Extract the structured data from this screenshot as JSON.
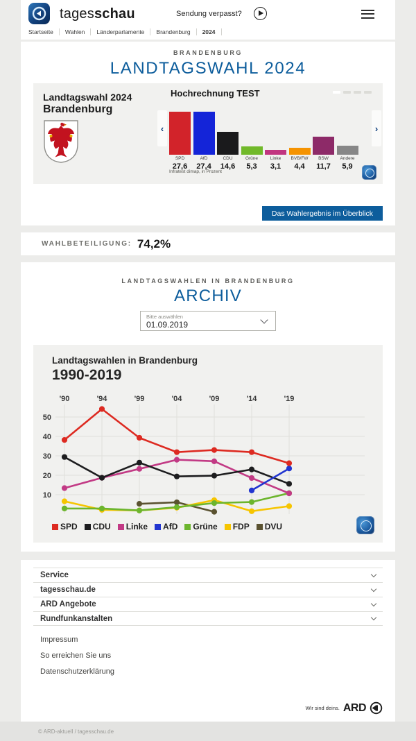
{
  "header": {
    "brand_regular": "tages",
    "brand_bold": "schau",
    "sendung_label": "Sendung verpasst?",
    "breadcrumb": [
      "Startseite",
      "Wahlen",
      "Länderparlamente",
      "Brandenburg",
      "2024"
    ]
  },
  "hero": {
    "kicker": "BRANDENBURG",
    "title": "LANDTAGSWAHL 2024"
  },
  "widget": {
    "card_title_line1": "Landtagswahl 2024",
    "card_title_line2": "Brandenburg",
    "panel_title": "Hochrechnung TEST",
    "source": "Infratest dimap, in Prozent",
    "pagination_count": 4,
    "pagination_active": 0,
    "prev_arrow": "‹",
    "next_arrow": "›"
  },
  "overview_button": {
    "label": "Das Wahlergebnis im Überblick"
  },
  "turnout": {
    "label": "WAHLBETEILIGUNG:",
    "value": "74,2%"
  },
  "archive": {
    "kicker": "LANDTAGSWAHLEN IN BRANDENBURG",
    "title": "ARCHIV",
    "select_label": "Bitte auswählen",
    "select_value": "01.09.2019"
  },
  "chart_data": [
    {
      "type": "bar",
      "title": "Hochrechnung TEST",
      "categories": [
        "SPD",
        "AfD",
        "CDU",
        "Grüne",
        "Linke",
        "BVB/FW",
        "BSW",
        "Andere"
      ],
      "values": [
        27.6,
        27.4,
        14.6,
        5.3,
        3.1,
        4.4,
        11.7,
        5.9
      ],
      "value_labels": [
        "27,6",
        "27,4",
        "14,6",
        "5,3",
        "3,1",
        "4,4",
        "11,7",
        "5,9"
      ],
      "colors": [
        "#d2232a",
        "#1424d8",
        "#1a1a1c",
        "#71b92a",
        "#c13580",
        "#f59300",
        "#8d2a68",
        "#878787"
      ],
      "note": "Infratest dimap, in Prozent",
      "ylabel": "Prozent",
      "ylim": [
        0,
        30
      ]
    },
    {
      "type": "line",
      "title": "Landtagswahlen in Brandenburg",
      "subtitle": "1990-2019",
      "x_labels": [
        "'90",
        "'94",
        "'99",
        "'04",
        "'09",
        "'14",
        "'19"
      ],
      "yticks": [
        50,
        40,
        30,
        20,
        10
      ],
      "ylim": [
        0,
        60
      ],
      "grid": true,
      "legend_position": "bottom",
      "series": [
        {
          "name": "SPD",
          "color": "#dd2a21",
          "values": [
            38.2,
            54.1,
            39.3,
            31.9,
            33.0,
            31.9,
            26.2
          ]
        },
        {
          "name": "CDU",
          "color": "#1d1d1f",
          "values": [
            29.4,
            18.7,
            26.5,
            19.4,
            19.8,
            23.0,
            15.6
          ]
        },
        {
          "name": "Linke",
          "color": "#c23a85",
          "values": [
            13.4,
            18.7,
            23.3,
            28.0,
            27.2,
            18.6,
            10.7
          ]
        },
        {
          "name": "AfD",
          "color": "#2135d0",
          "values": [
            null,
            null,
            null,
            null,
            null,
            12.2,
            23.5
          ]
        },
        {
          "name": "Grüne",
          "color": "#6cb52d",
          "values": [
            2.9,
            2.9,
            1.9,
            3.6,
            5.7,
            6.2,
            10.8
          ]
        },
        {
          "name": "FDP",
          "color": "#f6c500",
          "values": [
            6.6,
            2.2,
            1.9,
            3.3,
            7.2,
            1.5,
            4.1
          ]
        },
        {
          "name": "DVU",
          "color": "#5a5230",
          "values": [
            null,
            null,
            5.3,
            6.1,
            1.2,
            null,
            null
          ]
        }
      ]
    }
  ],
  "footer": {
    "accordion": [
      "Service",
      "tagesschau.de",
      "ARD Angebote",
      "Rundfunkanstalten"
    ],
    "links": [
      "Impressum",
      "So erreichen Sie uns",
      "Datenschutzerklärung"
    ],
    "ard_claim": "Wir sind deins.",
    "ard_name": "ARD",
    "copyright": "© ARD-aktuell / tagesschau.de"
  },
  "colors": {
    "accent_blue": "#0d5d9c",
    "card_gray": "#f1f1ef",
    "page_bg": "#ececea"
  }
}
